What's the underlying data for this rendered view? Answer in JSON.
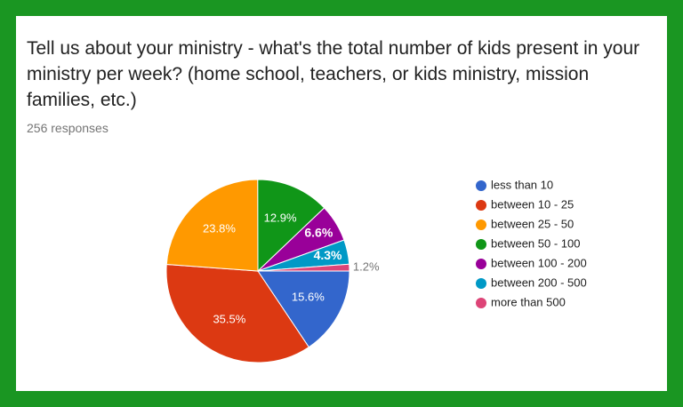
{
  "chart_data": {
    "type": "pie",
    "title": "Tell us about your ministry - what's the total number of kids present in your ministry per week? (home school, teachers, or kids ministry, mission families, etc.)",
    "subtitle": "256 responses",
    "categories": [
      "less than 10",
      "between 10 - 25",
      "between 25 - 50",
      "between 50 - 100",
      "between 100 - 200",
      "between 200 - 500",
      "more than 500"
    ],
    "values": [
      15.6,
      35.5,
      23.8,
      12.9,
      6.6,
      4.3,
      1.2
    ],
    "value_labels": [
      "15.6%",
      "35.5%",
      "23.8%",
      "12.9%",
      "6.6%",
      "4.3%",
      "1.2%"
    ],
    "colors": [
      "#3366cc",
      "#dc3912",
      "#ff9900",
      "#109618",
      "#990099",
      "#0099c6",
      "#dd4477"
    ],
    "legend": "right"
  }
}
